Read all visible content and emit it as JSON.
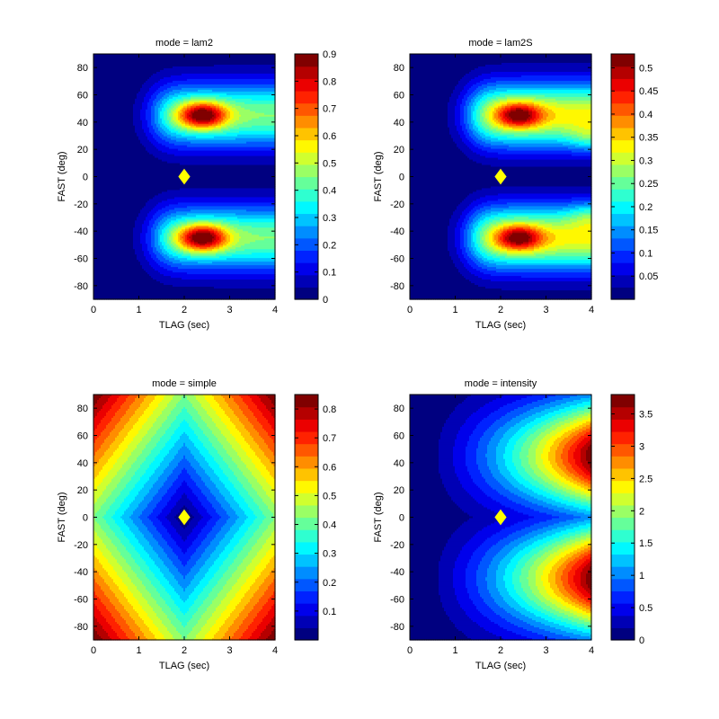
{
  "chart_data": [
    {
      "type": "heatmap",
      "title": "mode = lam2",
      "xlabel": "TLAG (sec)",
      "ylabel": "FAST (deg)",
      "xlim": [
        0,
        4
      ],
      "ylim": [
        -90,
        90
      ],
      "x_ticks": [
        0,
        1,
        2,
        3,
        4
      ],
      "y_ticks": [
        -80,
        -60,
        -40,
        -20,
        0,
        20,
        40,
        60,
        80
      ],
      "colormap": "jet",
      "clim": [
        0,
        0.9
      ],
      "colorbar_ticks": [
        "0",
        "0.1",
        "0.2",
        "0.3",
        "0.4",
        "0.5",
        "0.6",
        "0.7",
        "0.8",
        "0.9"
      ],
      "marker": {
        "shape": "diamond",
        "color": "#ffff00",
        "x": 2,
        "y": 0
      },
      "peaks": [
        {
          "x": 2.4,
          "y": 45,
          "value": 0.9
        },
        {
          "x": 2.4,
          "y": -45,
          "value": 0.9
        }
      ]
    },
    {
      "type": "heatmap",
      "title": "mode = lam2S",
      "xlabel": "TLAG (sec)",
      "ylabel": "FAST (deg)",
      "xlim": [
        0,
        4
      ],
      "ylim": [
        -90,
        90
      ],
      "x_ticks": [
        0,
        1,
        2,
        3,
        4
      ],
      "y_ticks": [
        -80,
        -60,
        -40,
        -20,
        0,
        20,
        40,
        60,
        80
      ],
      "colormap": "jet",
      "clim": [
        0,
        0.53
      ],
      "colorbar_ticks": [
        "0.05",
        "0.1",
        "0.15",
        "0.2",
        "0.25",
        "0.3",
        "0.35",
        "0.4",
        "0.45",
        "0.5"
      ],
      "marker": {
        "shape": "diamond",
        "color": "#ffff00",
        "x": 2,
        "y": 0
      },
      "peaks": [
        {
          "x": 2.4,
          "y": 45,
          "value": 0.53
        },
        {
          "x": 2.4,
          "y": -45,
          "value": 0.53
        },
        {
          "x": 3.9,
          "y": 28,
          "value": 0.45
        },
        {
          "x": 3.9,
          "y": -30,
          "value": 0.45
        }
      ]
    },
    {
      "type": "heatmap",
      "title": "mode = simple",
      "xlabel": "TLAG (sec)",
      "ylabel": "FAST (deg)",
      "xlim": [
        0,
        4
      ],
      "ylim": [
        -90,
        90
      ],
      "x_ticks": [
        0,
        1,
        2,
        3,
        4
      ],
      "y_ticks": [
        -80,
        -60,
        -40,
        -20,
        0,
        20,
        40,
        60,
        80
      ],
      "colormap": "jet",
      "clim": [
        0,
        0.85
      ],
      "colorbar_ticks": [
        "0.1",
        "0.2",
        "0.3",
        "0.4",
        "0.5",
        "0.6",
        "0.7",
        "0.8"
      ],
      "marker": {
        "shape": "diamond",
        "color": "#ffff00",
        "x": 2,
        "y": 0
      },
      "minimum": {
        "x": 2,
        "y": 0,
        "value": 0
      }
    },
    {
      "type": "heatmap",
      "title": "mode = intensity",
      "xlabel": "TLAG (sec)",
      "ylabel": "FAST (deg)",
      "xlim": [
        0,
        4
      ],
      "ylim": [
        -90,
        90
      ],
      "x_ticks": [
        0,
        1,
        2,
        3,
        4
      ],
      "y_ticks": [
        -80,
        -60,
        -40,
        -20,
        0,
        20,
        40,
        60,
        80
      ],
      "colormap": "jet",
      "clim": [
        0,
        3.8
      ],
      "colorbar_ticks": [
        "0",
        "0.5",
        "1",
        "1.5",
        "2",
        "2.5",
        "3",
        "3.5"
      ],
      "marker": {
        "shape": "diamond",
        "color": "#ffff00",
        "x": 2,
        "y": 0
      },
      "peaks": [
        {
          "x": 4,
          "y": 45,
          "value": 3.8
        },
        {
          "x": 4,
          "y": -45,
          "value": 3.8
        }
      ]
    }
  ]
}
